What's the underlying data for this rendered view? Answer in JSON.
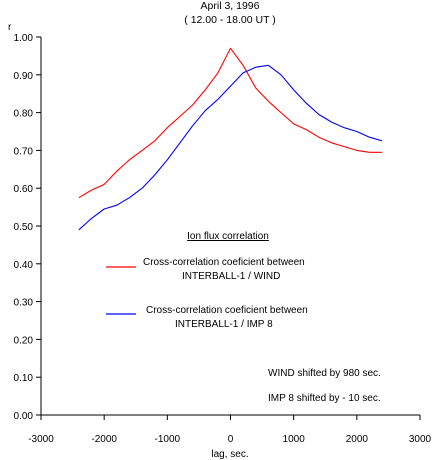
{
  "chart_data": {
    "type": "line",
    "title": "April 3, 1996",
    "subtitle": "( 12.00 - 18.00 UT )",
    "xlabel": "lag, sec.",
    "ylabel": "r",
    "xlim": [
      -3000,
      3000
    ],
    "ylim": [
      0.0,
      1.0
    ],
    "x_ticks": [
      "-3000",
      "-2000",
      "-1000",
      "0",
      "1000",
      "2000",
      "3000"
    ],
    "y_ticks": [
      "0.00",
      "0.10",
      "0.20",
      "0.30",
      "0.40",
      "0.50",
      "0.60",
      "0.70",
      "0.80",
      "0.90",
      "1.00"
    ],
    "legend_title": "Ion flux correlation",
    "series": [
      {
        "name": "Cross-correlation coeficient between INTERBALL-1 / WIND",
        "legend_line1": "Cross-correlation coeficient between",
        "legend_line2": "INTERBALL-1 / WIND",
        "color": "#ff0000",
        "x": [
          -2400,
          -2200,
          -2000,
          -1800,
          -1600,
          -1400,
          -1200,
          -1000,
          -800,
          -600,
          -400,
          -200,
          0,
          200,
          400,
          600,
          800,
          1000,
          1200,
          1400,
          1600,
          1800,
          2000,
          2200,
          2400
        ],
        "y": [
          0.575,
          0.595,
          0.61,
          0.645,
          0.675,
          0.7,
          0.725,
          0.76,
          0.79,
          0.82,
          0.86,
          0.905,
          0.97,
          0.925,
          0.865,
          0.83,
          0.8,
          0.77,
          0.755,
          0.735,
          0.72,
          0.71,
          0.7,
          0.695,
          0.695
        ]
      },
      {
        "name": "Cross-correlation coeficient between INTERBALL-1 / IMP 8",
        "legend_line1": "Cross-correlation coeficient between",
        "legend_line2": "INTERBALL-1 / IMP 8",
        "color": "#0000ff",
        "x": [
          -2400,
          -2200,
          -2000,
          -1800,
          -1600,
          -1400,
          -1200,
          -1000,
          -800,
          -600,
          -400,
          -200,
          0,
          200,
          400,
          600,
          800,
          1000,
          1200,
          1400,
          1600,
          1800,
          2000,
          2200,
          2400
        ],
        "y": [
          0.49,
          0.52,
          0.545,
          0.555,
          0.575,
          0.6,
          0.635,
          0.675,
          0.72,
          0.765,
          0.805,
          0.835,
          0.87,
          0.905,
          0.92,
          0.925,
          0.9,
          0.86,
          0.825,
          0.795,
          0.775,
          0.76,
          0.75,
          0.735,
          0.725
        ]
      }
    ],
    "annotations": [
      "WIND shifted by 980 sec.",
      "IMP 8 shifted by  - 10 sec."
    ],
    "grid": false
  }
}
